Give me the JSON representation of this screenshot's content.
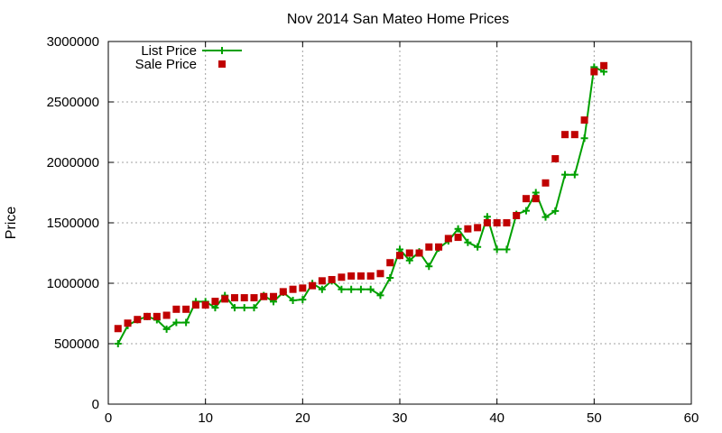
{
  "chart_data": {
    "type": "line",
    "title": "Nov 2014 San Mateo Home Prices",
    "xlabel": "",
    "ylabel": "Price",
    "xlim": [
      0,
      60
    ],
    "ylim": [
      0,
      3000000
    ],
    "xticks": [
      "0",
      "10",
      "20",
      "30",
      "40",
      "50",
      "60"
    ],
    "yticks": [
      "0",
      "500000",
      "1000000",
      "1500000",
      "2000000",
      "2500000",
      "3000000"
    ],
    "grid": true,
    "legend_position": "top-left",
    "series": [
      {
        "name": "List Price",
        "style": "line with plus markers",
        "color": "#00a000",
        "x": [
          1,
          2,
          3,
          4,
          5,
          6,
          7,
          8,
          9,
          10,
          11,
          12,
          13,
          14,
          15,
          16,
          17,
          18,
          19,
          20,
          21,
          22,
          23,
          24,
          25,
          26,
          27,
          28,
          29,
          30,
          31,
          32,
          33,
          34,
          35,
          36,
          37,
          38,
          39,
          40,
          41,
          42,
          43,
          44,
          45,
          46,
          47,
          48,
          49,
          50,
          51
        ],
        "values": [
          500000,
          650000,
          698000,
          725000,
          698000,
          620000,
          675000,
          675000,
          848000,
          848000,
          798000,
          898000,
          798000,
          798000,
          798000,
          898000,
          848000,
          925000,
          858000,
          865000,
          998000,
          950000,
          1020000,
          950000,
          950000,
          950000,
          950000,
          900000,
          1045000,
          1280000,
          1188000,
          1260000,
          1140000,
          1290000,
          1350000,
          1450000,
          1338000,
          1300000,
          1550000,
          1280000,
          1280000,
          1570000,
          1600000,
          1750000,
          1548000,
          1598000,
          1898000,
          1898000,
          2200000,
          2788000,
          2750000
        ]
      },
      {
        "name": "Sale Price",
        "style": "square markers",
        "color": "#c00000",
        "x": [
          1,
          2,
          3,
          4,
          5,
          6,
          7,
          8,
          9,
          10,
          11,
          12,
          13,
          14,
          15,
          16,
          17,
          18,
          19,
          20,
          21,
          22,
          23,
          24,
          25,
          26,
          27,
          28,
          29,
          30,
          31,
          32,
          33,
          34,
          35,
          36,
          37,
          38,
          39,
          40,
          41,
          42,
          43,
          44,
          45,
          46,
          47,
          48,
          49,
          50,
          51
        ],
        "values": [
          625000,
          670000,
          700000,
          725000,
          725000,
          735000,
          785000,
          785000,
          820000,
          820000,
          850000,
          870000,
          880000,
          880000,
          880000,
          890000,
          890000,
          930000,
          950000,
          960000,
          980000,
          1020000,
          1030000,
          1050000,
          1060000,
          1060000,
          1060000,
          1080000,
          1170000,
          1230000,
          1250000,
          1250000,
          1300000,
          1300000,
          1370000,
          1380000,
          1450000,
          1460000,
          1500000,
          1500000,
          1500000,
          1560000,
          1700000,
          1700000,
          1830000,
          2030000,
          2230000,
          2230000,
          2350000,
          2750000,
          2800000
        ]
      }
    ]
  }
}
